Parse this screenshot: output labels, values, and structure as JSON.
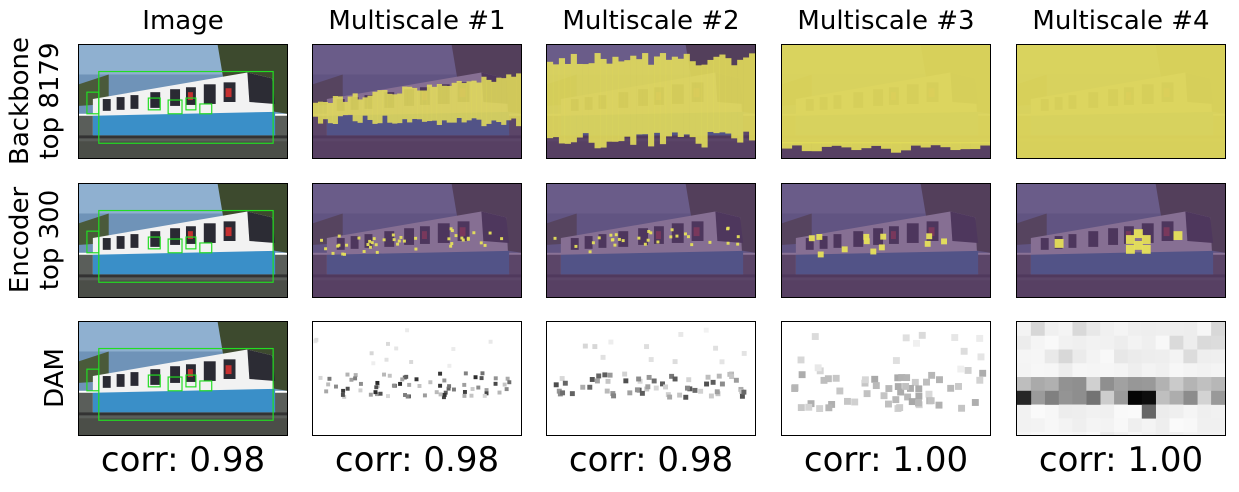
{
  "columns": [
    "Image",
    "Multiscale #1",
    "Multiscale #2",
    "Multiscale #3",
    "Multiscale #4"
  ],
  "rows": [
    {
      "label_line1": "Backbone",
      "label_line2": "top 8179"
    },
    {
      "label_line1": "Encoder",
      "label_line2": "top 300"
    },
    {
      "label_line1": "DAM",
      "label_line2": ""
    }
  ],
  "correlations": [
    "corr: 0.98",
    "corr: 0.98",
    "corr: 0.98",
    "corr: 1.00",
    "corr: 1.00"
  ],
  "colors": {
    "overlay_purple": "#5b3c6e",
    "overlay_yellow": "#e6e05a",
    "bbox_green": "#22dd22",
    "tram_blue": "#3a8fc8"
  }
}
